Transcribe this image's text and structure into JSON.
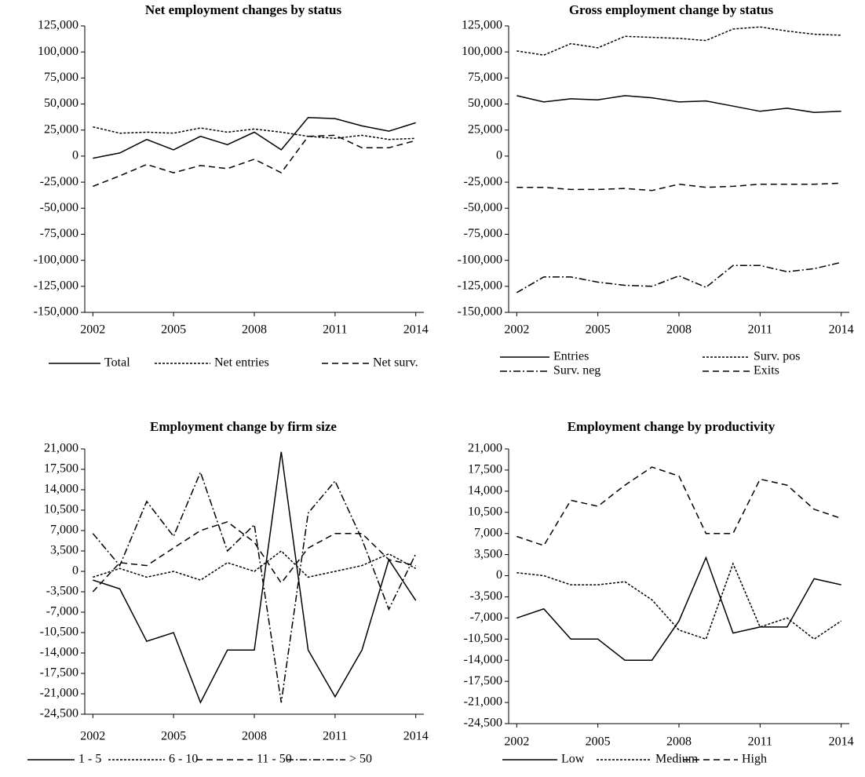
{
  "chart_data": [
    {
      "type": "line",
      "title": "Net employment changes by status",
      "x": [
        2002,
        2003,
        2004,
        2005,
        2006,
        2007,
        2008,
        2009,
        2010,
        2011,
        2012,
        2013,
        2014
      ],
      "xlim": [
        2001.7,
        2014.3
      ],
      "xticks": [
        2002,
        2005,
        2008,
        2011,
        2014
      ],
      "ylim": [
        -150000,
        125000
      ],
      "yticks": [
        {
          "value": -150000,
          "label": "-150,000"
        },
        {
          "value": -125000,
          "label": "-125,000"
        },
        {
          "value": -100000,
          "label": "-100,000"
        },
        {
          "value": -75000,
          "label": "-75,000"
        },
        {
          "value": -50000,
          "label": "-50,000"
        },
        {
          "value": -25000,
          "label": "-25,000"
        },
        0,
        {
          "value": 25000,
          "label": "25,000"
        },
        {
          "value": 50000,
          "label": "50,000"
        },
        {
          "value": 75000,
          "label": "75,000"
        },
        {
          "value": 100000,
          "label": "100,000"
        },
        {
          "value": 125000,
          "label": "125,000"
        }
      ],
      "series": [
        {
          "name": "Total",
          "color": "#000000",
          "style": "solid",
          "values": [
            -2000,
            3000,
            16000,
            6000,
            19000,
            11000,
            23000,
            6000,
            37000,
            36000,
            29000,
            24000,
            32000
          ]
        },
        {
          "name": "Net entries",
          "color": "#000000",
          "style": "dotted",
          "values": [
            28000,
            22000,
            23000,
            22000,
            27000,
            23000,
            26000,
            23000,
            19000,
            17000,
            20000,
            16000,
            17000
          ]
        },
        {
          "name": "Net surv.",
          "color": "#000000",
          "style": "dashed",
          "values": [
            -29000,
            -19000,
            -8000,
            -16000,
            -9000,
            -12000,
            -3000,
            -16000,
            19000,
            20000,
            8000,
            8000,
            15000
          ]
        }
      ]
    },
    {
      "type": "line",
      "title": "Gross employment change by status",
      "x": [
        2002,
        2003,
        2004,
        2005,
        2006,
        2007,
        2008,
        2009,
        2010,
        2011,
        2012,
        2013,
        2014
      ],
      "xlim": [
        2001.7,
        2014.3
      ],
      "xticks": [
        2002,
        2005,
        2008,
        2011,
        2014
      ],
      "ylim": [
        -150000,
        125000
      ],
      "yticks": [
        {
          "value": -150000,
          "label": "-150,000"
        },
        {
          "value": -125000,
          "label": "-125,000"
        },
        {
          "value": -100000,
          "label": "-100,000"
        },
        {
          "value": -75000,
          "label": "-75,000"
        },
        {
          "value": -50000,
          "label": "-50,000"
        },
        {
          "value": -25000,
          "label": "-25,000"
        },
        0,
        {
          "value": 25000,
          "label": "25,000"
        },
        {
          "value": 50000,
          "label": "50,000"
        },
        {
          "value": 75000,
          "label": "75,000"
        },
        {
          "value": 100000,
          "label": "100,000"
        },
        {
          "value": 125000,
          "label": "125,000"
        }
      ],
      "series": [
        {
          "name": "Entries",
          "color": "#000000",
          "style": "solid",
          "values": [
            58000,
            52000,
            55000,
            54000,
            58000,
            56000,
            52000,
            53000,
            48000,
            43000,
            46000,
            42000,
            43000
          ]
        },
        {
          "name": "Surv. pos",
          "color": "#000000",
          "style": "dotted",
          "values": [
            101000,
            97000,
            108000,
            104000,
            115000,
            114000,
            113000,
            111000,
            122000,
            124000,
            120000,
            117000,
            116000
          ]
        },
        {
          "name": "Surv.  neg",
          "color": "#000000",
          "style": "dashdot",
          "values": [
            -131000,
            -116000,
            -116000,
            -121000,
            -124000,
            -125000,
            -115000,
            -126000,
            -105000,
            -105000,
            -111000,
            -108000,
            -102000
          ]
        },
        {
          "name": "Exits",
          "color": "#000000",
          "style": "dashed",
          "values": [
            -30000,
            -30000,
            -32000,
            -32000,
            -31000,
            -33000,
            -27000,
            -30000,
            -29000,
            -27000,
            -27000,
            -27000,
            -26000
          ]
        }
      ]
    },
    {
      "type": "line",
      "title": "Employment change by firm size",
      "x": [
        2002,
        2003,
        2004,
        2005,
        2006,
        2007,
        2008,
        2009,
        2010,
        2011,
        2012,
        2013,
        2014
      ],
      "xlim": [
        2001.7,
        2014.3
      ],
      "xticks": [
        2002,
        2005,
        2008,
        2011,
        2014
      ],
      "ylim": [
        -24500,
        21000
      ],
      "yticks": [
        {
          "value": -24500,
          "label": "-24,500"
        },
        {
          "value": -21000,
          "label": "-21,000"
        },
        {
          "value": -17500,
          "label": "-17,500"
        },
        {
          "value": -14000,
          "label": "-14,000"
        },
        {
          "value": -10500,
          "label": "-10,500"
        },
        {
          "value": -7000,
          "label": "-7,000"
        },
        {
          "value": -3500,
          "label": "-3,500"
        },
        0,
        {
          "value": 3500,
          "label": "3,500"
        },
        {
          "value": 7000,
          "label": "7,000"
        },
        {
          "value": 10500,
          "label": "10,500"
        },
        {
          "value": 14000,
          "label": "14,000"
        },
        {
          "value": 17500,
          "label": "17,500"
        },
        {
          "value": 21000,
          "label": "21,000"
        }
      ],
      "series": [
        {
          "name": "1 - 5",
          "color": "#000000",
          "style": "solid",
          "values": [
            -1500,
            -3000,
            -12000,
            -10500,
            -22500,
            -13500,
            -13500,
            20500,
            -13500,
            -21500,
            -13500,
            2000,
            -5000
          ]
        },
        {
          "name": "6 - 10",
          "color": "#000000",
          "style": "dotted",
          "values": [
            -1000,
            500,
            -1000,
            0,
            -1500,
            1500,
            0,
            3500,
            -1000,
            0,
            1000,
            3000,
            500
          ]
        },
        {
          "name": "11 - 50",
          "color": "#000000",
          "style": "dashed",
          "values": [
            -3500,
            1500,
            1000,
            4000,
            7000,
            8500,
            5000,
            -2000,
            4000,
            6500,
            6500,
            2000,
            1000
          ]
        },
        {
          "name": "> 50",
          "color": "#000000",
          "style": "dashdot",
          "values": [
            6500,
            1000,
            12000,
            6000,
            17000,
            3500,
            8000,
            -22500,
            10000,
            15500,
            5500,
            -6500,
            3000
          ]
        }
      ]
    },
    {
      "type": "line",
      "title": "Employment change by productivity",
      "x": [
        2002,
        2003,
        2004,
        2005,
        2006,
        2007,
        2008,
        2009,
        2010,
        2011,
        2012,
        2013,
        2014
      ],
      "xlim": [
        2001.7,
        2014.3
      ],
      "xticks": [
        2002,
        2005,
        2008,
        2011,
        2014
      ],
      "ylim": [
        -24500,
        21000
      ],
      "yticks": [
        {
          "value": -24500,
          "label": "-24,500"
        },
        {
          "value": -21000,
          "label": "-21,000"
        },
        {
          "value": -17500,
          "label": "-17,500"
        },
        {
          "value": -14000,
          "label": "-14,000"
        },
        {
          "value": -10500,
          "label": "-10,500"
        },
        {
          "value": -7000,
          "label": "-7,000"
        },
        {
          "value": -3500,
          "label": "-3,500"
        },
        0,
        {
          "value": 3500,
          "label": "3,500"
        },
        {
          "value": 7000,
          "label": "7,000"
        },
        {
          "value": 10500,
          "label": "10,500"
        },
        {
          "value": 14000,
          "label": "14,000"
        },
        {
          "value": 17500,
          "label": "17,500"
        },
        {
          "value": 21000,
          "label": "21,000"
        }
      ],
      "series": [
        {
          "name": "Low",
          "color": "#000000",
          "style": "solid",
          "values": [
            -7000,
            -5500,
            -10500,
            -10500,
            -14000,
            -14000,
            -7500,
            3000,
            -9500,
            -8500,
            -8500,
            -500,
            -1500
          ]
        },
        {
          "name": "Medium",
          "color": "#000000",
          "style": "dotted",
          "values": [
            500,
            0,
            -1500,
            -1500,
            -1000,
            -4000,
            -9000,
            -10500,
            2000,
            -8500,
            -7000,
            -10500,
            -7500
          ]
        },
        {
          "name": "High",
          "color": "#000000",
          "style": "dashed",
          "values": [
            6500,
            5000,
            12500,
            11500,
            15000,
            18000,
            16500,
            7000,
            7000,
            16000,
            15000,
            11000,
            9500
          ]
        }
      ]
    }
  ]
}
